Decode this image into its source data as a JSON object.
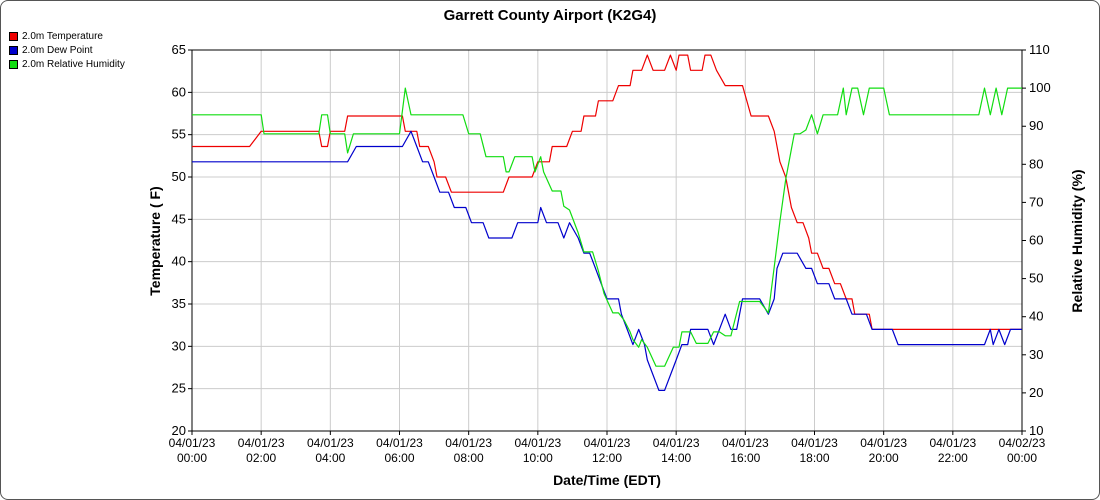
{
  "chart_data": {
    "type": "line",
    "title": "Garrett County Airport (K2G4)",
    "xlabel": "Date/Time (EDT)",
    "ylabel_left": "Temperature ( F)",
    "ylabel_right": "Relative Humidity (%)",
    "ylim_left": [
      20,
      65
    ],
    "ylim_right": [
      10,
      110
    ],
    "yticks_left": [
      "20",
      "25",
      "30",
      "35",
      "40",
      "45",
      "50",
      "55",
      "60",
      "65"
    ],
    "yticks_right": [
      "10",
      "20",
      "30",
      "40",
      "50",
      "60",
      "70",
      "80",
      "90",
      "100",
      "110"
    ],
    "xlim": [
      "04/01/23 00:00",
      "04/02/23 00:00"
    ],
    "xticks": [
      {
        "date": "04/01/23",
        "time": "00:00"
      },
      {
        "date": "04/01/23",
        "time": "02:00"
      },
      {
        "date": "04/01/23",
        "time": "04:00"
      },
      {
        "date": "04/01/23",
        "time": "06:00"
      },
      {
        "date": "04/01/23",
        "time": "08:00"
      },
      {
        "date": "04/01/23",
        "time": "10:00"
      },
      {
        "date": "04/01/23",
        "time": "12:00"
      },
      {
        "date": "04/01/23",
        "time": "14:00"
      },
      {
        "date": "04/01/23",
        "time": "16:00"
      },
      {
        "date": "04/01/23",
        "time": "18:00"
      },
      {
        "date": "04/01/23",
        "time": "20:00"
      },
      {
        "date": "04/01/23",
        "time": "22:00"
      },
      {
        "date": "04/02/23",
        "time": "00:00"
      }
    ],
    "grid": true,
    "legend_position": "top-left",
    "series": [
      {
        "name": "2.0m Temperature",
        "color": "#ee0000",
        "axis": "left",
        "points": [
          [
            "00:00",
            53.6
          ],
          [
            "01:40",
            53.6
          ],
          [
            "02:00",
            55.4
          ],
          [
            "03:40",
            55.4
          ],
          [
            "03:45",
            53.6
          ],
          [
            "03:55",
            53.6
          ],
          [
            "04:00",
            55.4
          ],
          [
            "04:25",
            55.4
          ],
          [
            "04:30",
            57.2
          ],
          [
            "06:05",
            57.2
          ],
          [
            "06:10",
            55.4
          ],
          [
            "06:30",
            55.4
          ],
          [
            "06:35",
            53.6
          ],
          [
            "06:50",
            53.6
          ],
          [
            "07:00",
            51.8
          ],
          [
            "07:05",
            50.0
          ],
          [
            "07:20",
            50.0
          ],
          [
            "07:30",
            48.2
          ],
          [
            "09:00",
            48.2
          ],
          [
            "09:10",
            50.0
          ],
          [
            "09:50",
            50.0
          ],
          [
            "10:00",
            51.8
          ],
          [
            "10:20",
            51.8
          ],
          [
            "10:25",
            53.6
          ],
          [
            "10:50",
            53.6
          ],
          [
            "11:00",
            55.4
          ],
          [
            "11:15",
            55.4
          ],
          [
            "11:20",
            57.2
          ],
          [
            "11:40",
            57.2
          ],
          [
            "11:45",
            59.0
          ],
          [
            "12:10",
            59.0
          ],
          [
            "12:20",
            60.8
          ],
          [
            "12:40",
            60.8
          ],
          [
            "12:45",
            62.6
          ],
          [
            "13:00",
            62.6
          ],
          [
            "13:10",
            64.4
          ],
          [
            "13:20",
            62.6
          ],
          [
            "13:40",
            62.6
          ],
          [
            "13:50",
            64.4
          ],
          [
            "14:00",
            62.6
          ],
          [
            "14:05",
            64.4
          ],
          [
            "14:20",
            64.4
          ],
          [
            "14:25",
            62.6
          ],
          [
            "14:45",
            62.6
          ],
          [
            "14:50",
            64.4
          ],
          [
            "15:00",
            64.4
          ],
          [
            "15:10",
            62.6
          ],
          [
            "15:25",
            60.8
          ],
          [
            "15:55",
            60.8
          ],
          [
            "16:10",
            57.2
          ],
          [
            "16:40",
            57.2
          ],
          [
            "16:50",
            55.4
          ],
          [
            "17:00",
            51.8
          ],
          [
            "17:10",
            50.0
          ],
          [
            "17:20",
            46.4
          ],
          [
            "17:30",
            44.6
          ],
          [
            "17:40",
            44.6
          ],
          [
            "17:50",
            42.8
          ],
          [
            "17:55",
            41.0
          ],
          [
            "18:05",
            41.0
          ],
          [
            "18:15",
            39.2
          ],
          [
            "18:25",
            39.2
          ],
          [
            "18:35",
            37.4
          ],
          [
            "18:45",
            37.4
          ],
          [
            "18:55",
            35.6
          ],
          [
            "19:05",
            35.6
          ],
          [
            "19:10",
            33.8
          ],
          [
            "19:35",
            33.8
          ],
          [
            "19:40",
            32.0
          ],
          [
            "24:00",
            32.0
          ]
        ]
      },
      {
        "name": "2.0m Dew Point",
        "color": "#0000cc",
        "axis": "left",
        "points": [
          [
            "00:00",
            51.8
          ],
          [
            "04:30",
            51.8
          ],
          [
            "04:45",
            53.6
          ],
          [
            "06:05",
            53.6
          ],
          [
            "06:20",
            55.4
          ],
          [
            "06:30",
            53.6
          ],
          [
            "06:40",
            51.8
          ],
          [
            "06:50",
            51.8
          ],
          [
            "07:00",
            50.0
          ],
          [
            "07:10",
            48.2
          ],
          [
            "07:25",
            48.2
          ],
          [
            "07:35",
            46.4
          ],
          [
            "07:55",
            46.4
          ],
          [
            "08:05",
            44.6
          ],
          [
            "08:25",
            44.6
          ],
          [
            "08:35",
            42.8
          ],
          [
            "09:15",
            42.8
          ],
          [
            "09:25",
            44.6
          ],
          [
            "10:00",
            44.6
          ],
          [
            "10:05",
            46.4
          ],
          [
            "10:15",
            44.6
          ],
          [
            "10:35",
            44.6
          ],
          [
            "10:45",
            42.8
          ],
          [
            "10:55",
            44.6
          ],
          [
            "11:10",
            42.8
          ],
          [
            "11:20",
            41.0
          ],
          [
            "11:30",
            41.0
          ],
          [
            "11:40",
            39.2
          ],
          [
            "11:50",
            37.4
          ],
          [
            "12:00",
            35.6
          ],
          [
            "12:20",
            35.6
          ],
          [
            "12:25",
            33.8
          ],
          [
            "12:35",
            32.0
          ],
          [
            "12:45",
            30.2
          ],
          [
            "12:55",
            32.0
          ],
          [
            "13:05",
            30.2
          ],
          [
            "13:10",
            28.4
          ],
          [
            "13:20",
            26.6
          ],
          [
            "13:30",
            24.8
          ],
          [
            "13:40",
            24.8
          ],
          [
            "13:50",
            26.6
          ],
          [
            "14:00",
            28.4
          ],
          [
            "14:10",
            30.2
          ],
          [
            "14:20",
            30.2
          ],
          [
            "14:25",
            32.0
          ],
          [
            "14:55",
            32.0
          ],
          [
            "15:05",
            30.2
          ],
          [
            "15:25",
            33.8
          ],
          [
            "15:35",
            32.0
          ],
          [
            "15:45",
            32.0
          ],
          [
            "15:55",
            35.6
          ],
          [
            "16:25",
            35.6
          ],
          [
            "16:40",
            33.8
          ],
          [
            "16:50",
            35.6
          ],
          [
            "16:55",
            39.2
          ],
          [
            "17:05",
            41.0
          ],
          [
            "17:30",
            41.0
          ],
          [
            "17:45",
            39.2
          ],
          [
            "17:55",
            39.2
          ],
          [
            "18:05",
            37.4
          ],
          [
            "18:25",
            37.4
          ],
          [
            "18:35",
            35.6
          ],
          [
            "18:55",
            35.6
          ],
          [
            "19:05",
            33.8
          ],
          [
            "19:30",
            33.8
          ],
          [
            "19:40",
            32.0
          ],
          [
            "20:15",
            32.0
          ],
          [
            "20:25",
            30.2
          ],
          [
            "22:55",
            30.2
          ],
          [
            "23:05",
            32.0
          ],
          [
            "23:10",
            30.2
          ],
          [
            "23:20",
            32.0
          ],
          [
            "23:30",
            30.2
          ],
          [
            "23:40",
            32.0
          ],
          [
            "24:00",
            32.0
          ]
        ]
      },
      {
        "name": "2.0m Relative Humidity",
        "color": "#11dd11",
        "axis": "right",
        "points": [
          [
            "00:00",
            93
          ],
          [
            "02:00",
            93
          ],
          [
            "02:05",
            88
          ],
          [
            "03:40",
            88
          ],
          [
            "03:45",
            93
          ],
          [
            "03:55",
            93
          ],
          [
            "04:00",
            88
          ],
          [
            "04:25",
            88
          ],
          [
            "04:30",
            83
          ],
          [
            "04:40",
            88
          ],
          [
            "06:00",
            88
          ],
          [
            "06:10",
            100
          ],
          [
            "06:20",
            93
          ],
          [
            "07:50",
            93
          ],
          [
            "08:00",
            88
          ],
          [
            "08:20",
            88
          ],
          [
            "08:30",
            82
          ],
          [
            "09:00",
            82
          ],
          [
            "09:05",
            78
          ],
          [
            "09:10",
            78
          ],
          [
            "09:20",
            82
          ],
          [
            "09:50",
            82
          ],
          [
            "09:55",
            78
          ],
          [
            "10:05",
            82
          ],
          [
            "10:10",
            78
          ],
          [
            "10:25",
            73
          ],
          [
            "10:40",
            73
          ],
          [
            "10:45",
            69
          ],
          [
            "10:55",
            68
          ],
          [
            "11:00",
            66
          ],
          [
            "11:10",
            62
          ],
          [
            "11:20",
            57
          ],
          [
            "11:35",
            57
          ],
          [
            "11:45",
            52
          ],
          [
            "11:55",
            46
          ],
          [
            "12:10",
            41
          ],
          [
            "12:20",
            41
          ],
          [
            "12:30",
            39
          ],
          [
            "12:40",
            36
          ],
          [
            "12:45",
            34
          ],
          [
            "12:55",
            32
          ],
          [
            "13:00",
            34
          ],
          [
            "13:10",
            32
          ],
          [
            "13:25",
            27
          ],
          [
            "13:40",
            27
          ],
          [
            "13:55",
            32
          ],
          [
            "14:05",
            32
          ],
          [
            "14:10",
            36
          ],
          [
            "14:25",
            36
          ],
          [
            "14:35",
            33
          ],
          [
            "14:55",
            33
          ],
          [
            "15:05",
            36
          ],
          [
            "15:15",
            36
          ],
          [
            "15:25",
            35
          ],
          [
            "15:35",
            35
          ],
          [
            "15:50",
            44
          ],
          [
            "16:25",
            44
          ],
          [
            "16:40",
            41
          ],
          [
            "16:50",
            53
          ],
          [
            "17:00",
            65
          ],
          [
            "17:10",
            76
          ],
          [
            "17:20",
            84
          ],
          [
            "17:25",
            88
          ],
          [
            "17:35",
            88
          ],
          [
            "17:45",
            89
          ],
          [
            "17:55",
            93
          ],
          [
            "18:05",
            88
          ],
          [
            "18:15",
            93
          ],
          [
            "18:40",
            93
          ],
          [
            "18:50",
            100
          ],
          [
            "18:55",
            93
          ],
          [
            "19:05",
            100
          ],
          [
            "19:15",
            100
          ],
          [
            "19:25",
            93
          ],
          [
            "19:35",
            100
          ],
          [
            "20:00",
            100
          ],
          [
            "20:10",
            93
          ],
          [
            "22:45",
            93
          ],
          [
            "22:55",
            100
          ],
          [
            "23:05",
            93
          ],
          [
            "23:15",
            100
          ],
          [
            "23:25",
            93
          ],
          [
            "23:35",
            100
          ],
          [
            "24:00",
            100
          ]
        ]
      }
    ]
  }
}
